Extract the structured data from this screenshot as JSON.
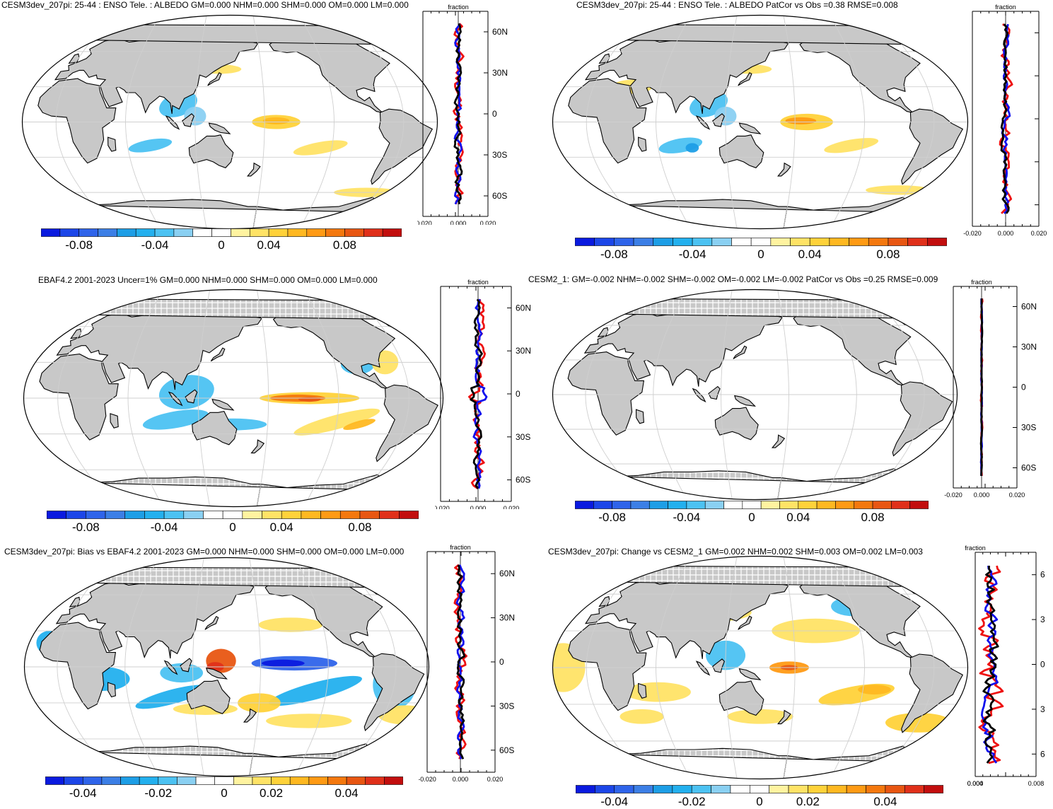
{
  "panels": [
    {
      "title": "CESM3dev_207pi: 25-44 : ENSO Tele. : ALBEDO GM=0.000 NHM=0.000 SHM=0.000 OM=0.000 LM=0.000",
      "profile_label": "fraction",
      "lat_ticks": [
        "60N",
        "30N",
        "0",
        "30S",
        "60S"
      ],
      "x_ticks": [
        "-0.020",
        "0.000",
        "0.020"
      ],
      "colorbar_ticks": [
        "-0.08",
        "-0.04",
        "0",
        "0.04",
        "0.08"
      ]
    },
    {
      "title": "CESM3dev_207pi: 25-44 : ENSO Tele. : ALBEDO PatCor vs Obs =0.38 RMSE=0.008",
      "profile_label": "fraction",
      "lat_ticks": [],
      "x_ticks": [
        "-0.020",
        "0.000",
        "0.020"
      ],
      "colorbar_ticks": [
        "-0.08",
        "-0.04",
        "0",
        "0.04",
        "0.08"
      ]
    },
    {
      "title": "EBAF4.2 2001-2023 Uncer=1% GM=0.000 NHM=0.000 SHM=0.000 OM=0.000 LM=0.000",
      "profile_label": "fraction",
      "lat_ticks": [
        "60N",
        "30N",
        "0",
        "30S",
        "60S"
      ],
      "x_ticks": [
        "-0.020",
        "0.000",
        "0.020"
      ],
      "colorbar_ticks": [
        "-0.08",
        "-0.04",
        "0",
        "0.04",
        "0.08"
      ]
    },
    {
      "title": "CESM2_1: GM=-0.002 NHM=-0.002 SHM=-0.002 OM=-0.002 LM=-0.002 PatCor vs Obs =0.25 RMSE=0.009",
      "profile_label": "fraction",
      "lat_ticks": [
        "60N",
        "30N",
        "0",
        "30S",
        "60S"
      ],
      "x_ticks": [
        "-0.020",
        "0.000",
        "0.020"
      ],
      "colorbar_ticks": [
        "-0.08",
        "-0.04",
        "0",
        "0.04",
        "0.08"
      ]
    },
    {
      "title": "CESM3dev_207pi: Bias vs EBAF4.2 2001-2023 GM=0.000 NHM=0.000 SHM=0.000 OM=0.000 LM=0.000",
      "profile_label": "fraction",
      "lat_ticks": [
        "60N",
        "30N",
        "0",
        "30S",
        "60S"
      ],
      "x_ticks": [
        "-0.020",
        "0.000",
        "0.020"
      ],
      "colorbar_ticks": [
        "-0.04",
        "-0.02",
        "0",
        "0.02",
        "0.04"
      ]
    },
    {
      "title": "CESM3dev_207pi: Change vs CESM2_1 GM=0.002 NHM=0.002 SHM=0.003 OM=0.002 LM=0.003",
      "profile_label": "fraction",
      "lat_ticks": [
        "6",
        "3",
        "0",
        "3",
        "6"
      ],
      "x_ticks": [
        "0.000",
        "0.004",
        "0.008"
      ],
      "colorbar_ticks": [
        "-0.04",
        "-0.02",
        "0",
        "0.02",
        "0.04"
      ]
    }
  ],
  "colors": {
    "land": "#c8c8c8",
    "coast": "#000000",
    "grid": "#cfcfcf",
    "profile_model": "#1010ee",
    "profile_obs": "#ee1111",
    "profile_diff": "#000000",
    "scale": [
      "#0a1adf",
      "#1c46e8",
      "#2f64ea",
      "#3c7fe6",
      "#1d9ee6",
      "#23b0ee",
      "#4cc2f2",
      "#8ad0f2",
      "#ffffff",
      "#ffffff",
      "#fff3a0",
      "#ffe366",
      "#ffd23a",
      "#ffb821",
      "#ff9a14",
      "#f4780e",
      "#e85612",
      "#e0301a",
      "#c20e0e"
    ]
  }
}
